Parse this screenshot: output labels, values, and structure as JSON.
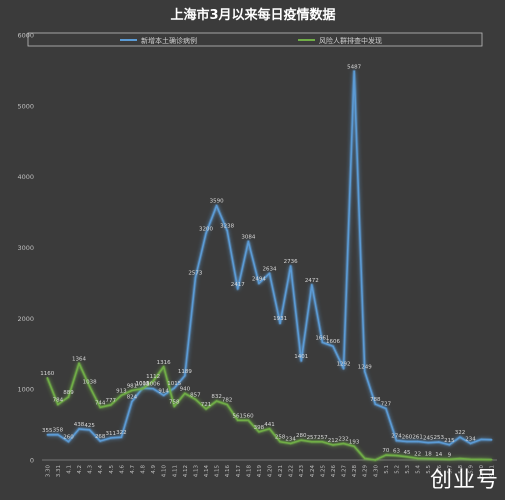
{
  "chart_data": {
    "type": "line",
    "title": "上海市3月以来每日疫情数据",
    "xlabel": "",
    "ylabel": "",
    "ylim": [
      0,
      6000
    ],
    "yticks": [
      0,
      1000,
      2000,
      3000,
      4000,
      5000,
      6000
    ],
    "grid": false,
    "legend": "top",
    "categories": [
      "3.30",
      "3.31",
      "4.1",
      "4.2",
      "4.3",
      "4.4",
      "4.5",
      "4.6",
      "4.7",
      "4.8",
      "4.9",
      "4.10",
      "4.11",
      "4.12",
      "4.13",
      "4.14",
      "4.15",
      "4.16",
      "4.17",
      "4.18",
      "4.19",
      "4.20",
      "4.21",
      "4.22",
      "4.23",
      "4.24",
      "4.25",
      "4.26",
      "4.27",
      "4.28",
      "4.29",
      "4.30",
      "5.1",
      "5.2",
      "5.3",
      "5.4",
      "5.5",
      "5.6",
      "5.7",
      "5.8",
      "5.9",
      "5.10",
      "5.11"
    ],
    "series": [
      {
        "name": "新增本土确诊病例",
        "color": "#5b9bd5",
        "values": [
          355,
          358,
          260,
          438,
          425,
          268,
          311,
          322,
          824,
          1015,
          1006,
          914,
          1015,
          1189,
          2573,
          3200,
          3590,
          3238,
          2417,
          3084,
          2494,
          2634,
          1931,
          2736,
          1401,
          2472,
          1661,
          1606,
          1292,
          5487,
          1249,
          788,
          727,
          274,
          260,
          261,
          245,
          253,
          215,
          322,
          234,
          290,
          285
        ],
        "labels": [
          "355",
          "358",
          "260",
          "438",
          "425",
          "268",
          "311",
          "322",
          "824",
          "1015",
          "1006",
          "914",
          "1015",
          "1189",
          "2573",
          "3200",
          "3590",
          "3238",
          "2417",
          "3084",
          "2494",
          "2634",
          "1931",
          "2736",
          "1401",
          "2472",
          "1661",
          "1606",
          "1292",
          "5487",
          "1249",
          "788",
          "727",
          "274",
          "260",
          "261",
          "245",
          "253",
          "215",
          "322",
          "234",
          "",
          ""
        ]
      },
      {
        "name": "风险人群排查中发现",
        "color": "#70ad47",
        "values": [
          1160,
          784,
          889,
          1364,
          1038,
          744,
          777,
          913,
          981,
          1008,
          1112,
          1316,
          758,
          940,
          857,
          721,
          832,
          782,
          561,
          560,
          398,
          441,
          258,
          234,
          280,
          257,
          257,
          212,
          232,
          193,
          22,
          0,
          70,
          63,
          45,
          22,
          18,
          14,
          9,
          20,
          10,
          8,
          5
        ],
        "labels": [
          "1160",
          "784",
          "889",
          "1364",
          "1038",
          "744",
          "777",
          "913",
          "981",
          "1008",
          "1112",
          "1316",
          "758",
          "940",
          "857",
          "721",
          "832",
          "782",
          "561",
          "560",
          "398",
          "441",
          "258",
          "234",
          "280",
          "257",
          "257",
          "212",
          "232",
          "193",
          "",
          "",
          "70",
          "63",
          "45",
          "22",
          "18",
          "14",
          "9",
          "",
          "",
          "",
          ""
        ]
      }
    ]
  },
  "watermark": "创业号"
}
